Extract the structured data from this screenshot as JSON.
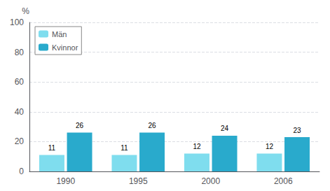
{
  "chart_data": {
    "type": "bar",
    "categories": [
      "1990",
      "1995",
      "2000",
      "2006"
    ],
    "series": [
      {
        "name": "Män",
        "color": "#7FDDEE",
        "values": [
          11,
          11,
          12,
          12
        ]
      },
      {
        "name": "Kvinnor",
        "color": "#29AACC",
        "values": [
          26,
          26,
          24,
          23
        ]
      }
    ],
    "ylabel": "%",
    "ylim": [
      0,
      100
    ],
    "yticks": [
      0,
      20,
      40,
      60,
      80,
      100
    ],
    "grid": true,
    "legend": "upper left",
    "data_labels": true
  }
}
